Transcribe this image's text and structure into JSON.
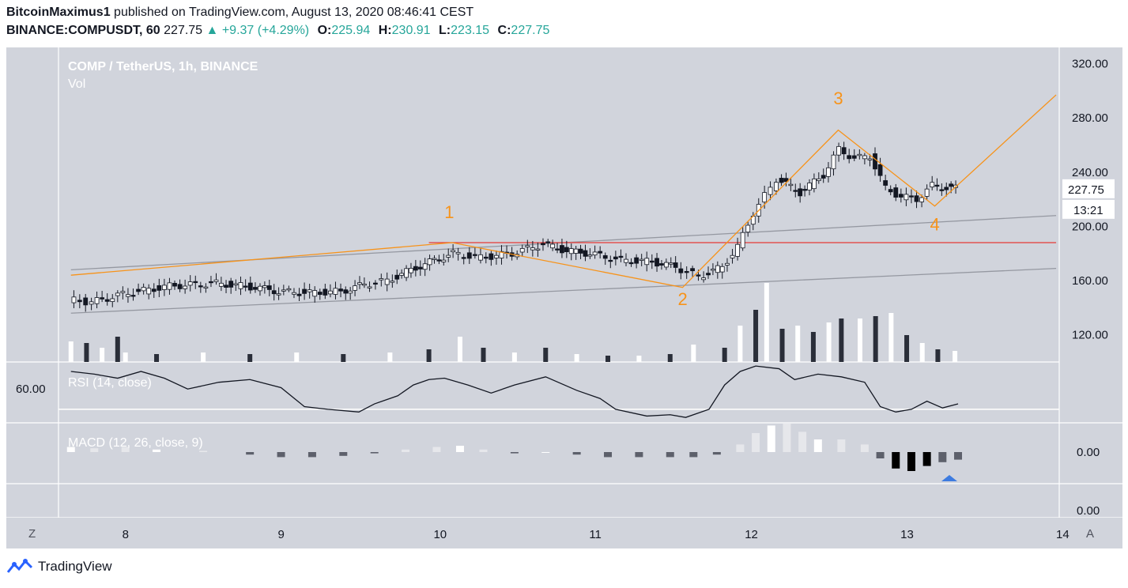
{
  "header": {
    "author": "BitcoinMaximus1",
    "published_text": "published on TradingView.com, August 13, 2020 08:46:41 CEST",
    "symbol_interval": "BINANCE:COMPUSDT, 60",
    "last_price": "227.75",
    "change": "+9.37 (+4.29%)",
    "open_label": "O:",
    "open": "225.94",
    "high_label": "H:",
    "high": "230.91",
    "low_label": "L:",
    "low": "223.15",
    "close_label": "C:",
    "close": "227.75"
  },
  "chart_header": {
    "title": "COMP / TetherUS, 1h, BINANCE",
    "vol_label": "Vol"
  },
  "footer": {
    "brand": "TradingView"
  },
  "controls": {
    "left_button": "Z",
    "right_button": "A"
  },
  "colors": {
    "panel_bg": "#d1d4dc",
    "wave_line": "#f7931a",
    "resistance_line": "#e53935",
    "channel_line": "#9598a1",
    "price_tag_bg": "#ffffff",
    "arrow_marker": "#3d7be0",
    "up_change": "#26a69a"
  },
  "chart_data": [
    {
      "type": "candlestick",
      "title": "COMP / TetherUS, 1h, BINANCE",
      "x_ticks": [
        "8",
        "9",
        "10",
        "11",
        "12",
        "13",
        "14"
      ],
      "y_ticks": [
        "320.00",
        "280.00",
        "240.00",
        "200.00",
        "160.00",
        "120.00"
      ],
      "ylim": [
        100,
        332
      ],
      "last_price_label": "227.75",
      "countdown_label": "13:21",
      "price_path": [
        [
          7.65,
          146
        ],
        [
          7.8,
          144
        ],
        [
          8.0,
          150
        ],
        [
          8.3,
          156
        ],
        [
          8.6,
          158
        ],
        [
          8.85,
          155
        ],
        [
          9.0,
          152
        ],
        [
          9.2,
          151
        ],
        [
          9.4,
          152
        ],
        [
          9.55,
          157
        ],
        [
          9.7,
          160
        ],
        [
          9.85,
          168
        ],
        [
          10.0,
          175
        ],
        [
          10.12,
          180
        ],
        [
          10.3,
          177
        ],
        [
          10.5,
          180
        ],
        [
          10.7,
          187
        ],
        [
          10.85,
          182
        ],
        [
          11.0,
          180
        ],
        [
          11.2,
          175
        ],
        [
          11.4,
          174
        ],
        [
          11.55,
          170
        ],
        [
          11.7,
          163
        ],
        [
          11.85,
          170
        ],
        [
          11.95,
          185
        ],
        [
          12.05,
          210
        ],
        [
          12.2,
          235
        ],
        [
          12.35,
          225
        ],
        [
          12.5,
          238
        ],
        [
          12.6,
          257
        ],
        [
          12.7,
          250
        ],
        [
          12.8,
          252
        ],
        [
          12.9,
          228
        ],
        [
          13.0,
          222
        ],
        [
          13.1,
          220
        ],
        [
          13.2,
          230
        ],
        [
          13.35,
          228
        ]
      ],
      "wave_path": [
        [
          7.65,
          164
        ],
        [
          10.1,
          188
        ],
        [
          11.58,
          155
        ],
        [
          12.58,
          271
        ],
        [
          13.2,
          215
        ],
        [
          13.98,
          297
        ]
      ],
      "wave_labels": [
        {
          "text": "1",
          "x": 10.08,
          "y": 206
        },
        {
          "text": "2",
          "x": 11.58,
          "y": 142
        },
        {
          "text": "3",
          "x": 12.58,
          "y": 290
        },
        {
          "text": "4",
          "x": 13.2,
          "y": 197
        }
      ],
      "resistance_line": {
        "x_start": 9.95,
        "x_end": 13.98,
        "y": 188
      },
      "channel_upper": {
        "x_start": 7.65,
        "y_start": 168,
        "x_end": 13.98,
        "y_end": 208
      },
      "channel_lower": {
        "x_start": 7.65,
        "y_start": 136,
        "x_end": 13.98,
        "y_end": 169
      }
    },
    {
      "type": "bar",
      "title": "Vol",
      "note": "relative volume 0-1",
      "values": [
        [
          7.65,
          0.26
        ],
        [
          7.75,
          0.24
        ],
        [
          7.85,
          0.18
        ],
        [
          7.95,
          0.32
        ],
        [
          8.0,
          0.12
        ],
        [
          8.2,
          0.1
        ],
        [
          8.5,
          0.12
        ],
        [
          8.8,
          0.1
        ],
        [
          9.1,
          0.12
        ],
        [
          9.4,
          0.1
        ],
        [
          9.7,
          0.12
        ],
        [
          9.95,
          0.16
        ],
        [
          10.15,
          0.32
        ],
        [
          10.3,
          0.18
        ],
        [
          10.5,
          0.12
        ],
        [
          10.7,
          0.18
        ],
        [
          10.9,
          0.1
        ],
        [
          11.1,
          0.08
        ],
        [
          11.3,
          0.08
        ],
        [
          11.5,
          0.1
        ],
        [
          11.65,
          0.22
        ],
        [
          11.85,
          0.18
        ],
        [
          11.95,
          0.46
        ],
        [
          12.05,
          0.66
        ],
        [
          12.12,
          1.0
        ],
        [
          12.22,
          0.42
        ],
        [
          12.32,
          0.46
        ],
        [
          12.42,
          0.38
        ],
        [
          12.52,
          0.5
        ],
        [
          12.6,
          0.55
        ],
        [
          12.72,
          0.55
        ],
        [
          12.82,
          0.58
        ],
        [
          12.92,
          0.62
        ],
        [
          13.02,
          0.34
        ],
        [
          13.12,
          0.24
        ],
        [
          13.22,
          0.16
        ],
        [
          13.33,
          0.14
        ]
      ]
    },
    {
      "type": "line",
      "title": "RSI (14, close)",
      "y_tick": "60.00",
      "values": [
        [
          7.65,
          68
        ],
        [
          7.8,
          66
        ],
        [
          7.95,
          63
        ],
        [
          8.1,
          68
        ],
        [
          8.25,
          63
        ],
        [
          8.4,
          55
        ],
        [
          8.6,
          60
        ],
        [
          8.8,
          62
        ],
        [
          9.0,
          56
        ],
        [
          9.15,
          42
        ],
        [
          9.3,
          40
        ],
        [
          9.5,
          38
        ],
        [
          9.6,
          44
        ],
        [
          9.75,
          50
        ],
        [
          9.85,
          58
        ],
        [
          9.95,
          62
        ],
        [
          10.05,
          63
        ],
        [
          10.2,
          58
        ],
        [
          10.35,
          52
        ],
        [
          10.5,
          58
        ],
        [
          10.7,
          64
        ],
        [
          10.9,
          54
        ],
        [
          11.05,
          48
        ],
        [
          11.15,
          40
        ],
        [
          11.35,
          35
        ],
        [
          11.5,
          36
        ],
        [
          11.6,
          34
        ],
        [
          11.75,
          40
        ],
        [
          11.85,
          58
        ],
        [
          11.95,
          68
        ],
        [
          12.05,
          72
        ],
        [
          12.2,
          70
        ],
        [
          12.3,
          62
        ],
        [
          12.45,
          66
        ],
        [
          12.6,
          64
        ],
        [
          12.75,
          60
        ],
        [
          12.85,
          42
        ],
        [
          12.95,
          38
        ],
        [
          13.05,
          40
        ],
        [
          13.15,
          46
        ],
        [
          13.25,
          41
        ],
        [
          13.35,
          44
        ]
      ]
    },
    {
      "type": "bar",
      "title": "MACD (12, 26, close, 9)",
      "y_ticks": [
        "0.00",
        "0.00"
      ],
      "note": "histogram, relative units",
      "values": [
        [
          7.65,
          0.08
        ],
        [
          7.8,
          0.06
        ],
        [
          8.0,
          0.08
        ],
        [
          8.2,
          0.04
        ],
        [
          8.5,
          0.02
        ],
        [
          8.8,
          -0.04
        ],
        [
          9.0,
          -0.08
        ],
        [
          9.2,
          -0.08
        ],
        [
          9.4,
          -0.06
        ],
        [
          9.6,
          -0.02
        ],
        [
          9.8,
          0.04
        ],
        [
          10.0,
          0.08
        ],
        [
          10.15,
          0.1
        ],
        [
          10.3,
          0.04
        ],
        [
          10.5,
          -0.02
        ],
        [
          10.7,
          0.0
        ],
        [
          10.9,
          -0.04
        ],
        [
          11.1,
          -0.08
        ],
        [
          11.3,
          -0.08
        ],
        [
          11.5,
          -0.08
        ],
        [
          11.65,
          -0.08
        ],
        [
          11.8,
          -0.04
        ],
        [
          11.95,
          0.12
        ],
        [
          12.05,
          0.3
        ],
        [
          12.15,
          0.42
        ],
        [
          12.25,
          0.45
        ],
        [
          12.35,
          0.32
        ],
        [
          12.45,
          0.2
        ],
        [
          12.6,
          0.2
        ],
        [
          12.75,
          0.12
        ],
        [
          12.85,
          -0.1
        ],
        [
          12.95,
          -0.26
        ],
        [
          13.05,
          -0.3
        ],
        [
          13.15,
          -0.22
        ],
        [
          13.25,
          -0.16
        ],
        [
          13.35,
          -0.12
        ]
      ]
    }
  ]
}
